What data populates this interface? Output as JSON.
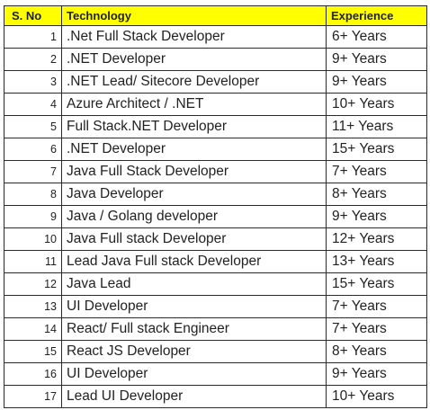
{
  "header": {
    "sno": "S. No",
    "technology": "Technology",
    "experience": "Experience"
  },
  "colors": {
    "header_bg": "#ffff00",
    "border": "#2b2b2b"
  },
  "rows": [
    {
      "no": "1",
      "technology": ".Net Full Stack Developer",
      "experience": "6+ Years"
    },
    {
      "no": "2",
      "technology": ".NET Developer",
      "experience": "9+ Years"
    },
    {
      "no": "3",
      "technology": ".NET Lead/ Sitecore Developer",
      "experience": "9+ Years"
    },
    {
      "no": "4",
      "technology": "Azure Architect / .NET",
      "experience": "10+ Years"
    },
    {
      "no": "5",
      "technology": "Full Stack.NET Developer",
      "experience": "11+ Years"
    },
    {
      "no": "6",
      "technology": ".NET Developer",
      "experience": "15+ Years"
    },
    {
      "no": "7",
      "technology": "Java Full Stack Developer",
      "experience": "7+ Years"
    },
    {
      "no": "8",
      "technology": "Java Developer",
      "experience": "8+ Years"
    },
    {
      "no": "9",
      "technology": "Java / Golang developer",
      "experience": "9+ Years"
    },
    {
      "no": "10",
      "technology": "Java Full stack Developer",
      "experience": "12+ Years"
    },
    {
      "no": "11",
      "technology": "Lead Java Full stack Developer",
      "experience": "13+ Years"
    },
    {
      "no": "12",
      "technology": "Java Lead",
      "experience": "15+ Years"
    },
    {
      "no": "13",
      "technology": "UI Developer",
      "experience": "7+ Years"
    },
    {
      "no": "14",
      "technology": "React/ Full stack Engineer",
      "experience": "7+ Years"
    },
    {
      "no": "15",
      "technology": "React JS Developer",
      "experience": "8+ Years"
    },
    {
      "no": "16",
      "technology": "UI Developer",
      "experience": "9+ Years"
    },
    {
      "no": "17",
      "technology": "Lead UI Developer",
      "experience": "10+ Years"
    }
  ]
}
